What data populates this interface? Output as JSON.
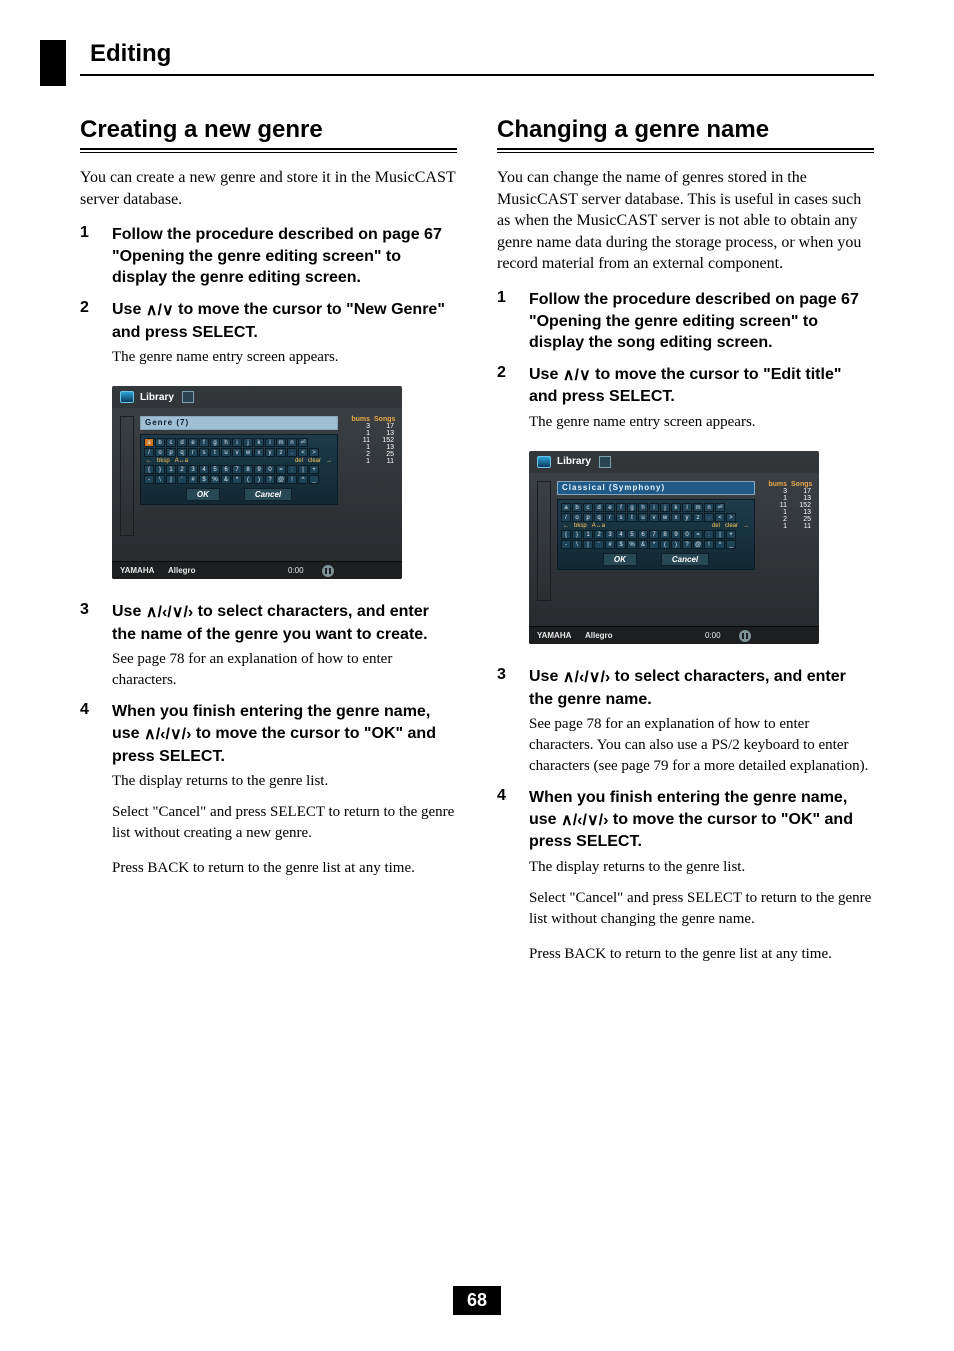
{
  "top": {
    "heading": "Editing"
  },
  "left": {
    "h2": "Creating a new genre",
    "intro": "You can create a new genre and store it in the MusicCAST server database.",
    "steps": {
      "n1": "1",
      "s1": "Follow the procedure described on page 67 \"Opening the genre editing screen\" to display the genre editing screen.",
      "n2": "2",
      "s2a": "Use ",
      "s2b": " to move the cursor to \"New Genre\" and press SELECT.",
      "s2note": "The genre name entry screen appears.",
      "n3": "3",
      "s3a": "Use ",
      "s3b": " to select characters, and enter the name of the genre you want to create.",
      "s3note": "See page 78 for an explanation of how to enter characters.",
      "n4": "4",
      "s4a": "When you finish entering the genre name, use ",
      "s4b": " to move the cursor to \"OK\" and press SELECT.",
      "s4note1": "The display returns to the genre list.",
      "s4note2": "Select \"Cancel\" and press SELECT to return to the genre list without creating a new genre.",
      "s4note3": "Press BACK to return to the genre list at any time."
    },
    "shot": {
      "title": "Library",
      "genrebar": "Genre (7)",
      "ok": "OK",
      "cancel": "Cancel",
      "head_bums": "bums",
      "head_songs": "Songs",
      "rows": [
        {
          "a": "3",
          "b": "17"
        },
        {
          "a": "1",
          "b": "13"
        },
        {
          "a": "11",
          "b": "152"
        },
        {
          "a": "1",
          "b": "13"
        },
        {
          "a": "2",
          "b": "25"
        },
        {
          "a": "1",
          "b": "11"
        }
      ],
      "brand": "YAMAHA",
      "track": "Allegro",
      "time": "0:00",
      "kb": {
        "r1": [
          "a",
          "b",
          "c",
          "d",
          "e",
          "f",
          "g",
          "h",
          "i",
          "j",
          "k",
          "l",
          "m",
          "n",
          "⏎"
        ],
        "r2": [
          "/",
          "o",
          "p",
          "q",
          "r",
          "s",
          "t",
          "u",
          "v",
          "w",
          "x",
          "y",
          "z",
          ".",
          "<",
          ">"
        ],
        "r3w1": "bksp",
        "r3w2": "A↔a",
        "r3w3": "del",
        "r3w4": "clear",
        "r4": [
          "{",
          "}",
          "1",
          "2",
          "3",
          "4",
          "5",
          "6",
          "7",
          "8",
          "9",
          "0",
          "=",
          ":",
          "|",
          "+"
        ],
        "r5": [
          "-",
          "\\",
          "|",
          "'",
          "#",
          "$",
          "%",
          "&",
          "*",
          "(",
          ")",
          "?",
          "@",
          "!",
          "^",
          "_"
        ]
      }
    }
  },
  "right": {
    "h2": "Changing a genre name",
    "intro": "You can change the name of genres stored in the MusicCAST server database. This is useful in cases such as when the MusicCAST server is not able to obtain any genre name data during the storage process, or when you record material from an external component.",
    "steps": {
      "n1": "1",
      "s1": "Follow the procedure described on page 67 \"Opening the genre editing screen\" to display the song editing screen.",
      "n2": "2",
      "s2a": "Use ",
      "s2b": " to move the cursor to \"Edit title\" and press SELECT.",
      "s2note": "The genre name entry screen appears.",
      "n3": "3",
      "s3a": "Use ",
      "s3b": " to select characters, and enter the genre name.",
      "s3note": "See page 78 for an explanation of how to enter characters. You can also use a PS/2 keyboard to enter characters (see page 79 for a more detailed explanation).",
      "n4": "4",
      "s4a": "When you finish entering the genre name, use ",
      "s4b": " to move the cursor to \"OK\" and press SELECT.",
      "s4note1": "The display returns to the genre list.",
      "s4note2": "Select \"Cancel\" and press SELECT to return to the genre list without changing the genre name.",
      "s4note3": "Press BACK to return to the genre list at any time."
    },
    "shot": {
      "title": "Library",
      "genrebar": "Classical (Symphony)",
      "ok": "OK",
      "cancel": "Cancel",
      "head_bums": "bums",
      "head_songs": "Songs",
      "rows": [
        {
          "a": "3",
          "b": "17"
        },
        {
          "a": "1",
          "b": "13"
        },
        {
          "a": "11",
          "b": "152"
        },
        {
          "a": "1",
          "b": "13"
        },
        {
          "a": "2",
          "b": "25"
        },
        {
          "a": "1",
          "b": "11"
        }
      ],
      "brand": "YAMAHA",
      "track": "Allegro",
      "time": "0:00"
    }
  },
  "arrows": {
    "ud": "∧/∨",
    "udlr": "∧/‹/∨/›"
  },
  "page_number": "68",
  "style": {
    "accent_orange": "#d07820",
    "ui_bg_top": "#3d4246",
    "ui_bg_bottom": "#26292c"
  }
}
